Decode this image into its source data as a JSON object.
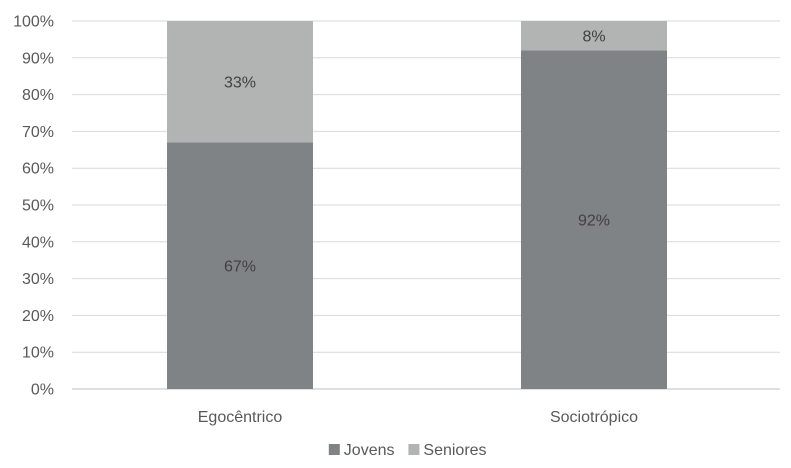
{
  "chart_data": {
    "type": "bar",
    "stacked": true,
    "percent": true,
    "categories": [
      "Egocêntrico",
      "Sociotrópico"
    ],
    "series": [
      {
        "name": "Jovens",
        "values": [
          67,
          92
        ],
        "labels": [
          "67%",
          "92%"
        ],
        "color": "#808385"
      },
      {
        "name": "Seniores",
        "values": [
          33,
          8
        ],
        "labels": [
          "33%",
          "8%"
        ],
        "color": "#b2b4b4"
      }
    ],
    "yticks": [
      "0%",
      "10%",
      "20%",
      "30%",
      "40%",
      "50%",
      "60%",
      "70%",
      "80%",
      "90%",
      "100%"
    ],
    "ylim": [
      0,
      100
    ],
    "grid": true,
    "legend": "bottom",
    "title": "",
    "xlabel": "",
    "ylabel": ""
  }
}
